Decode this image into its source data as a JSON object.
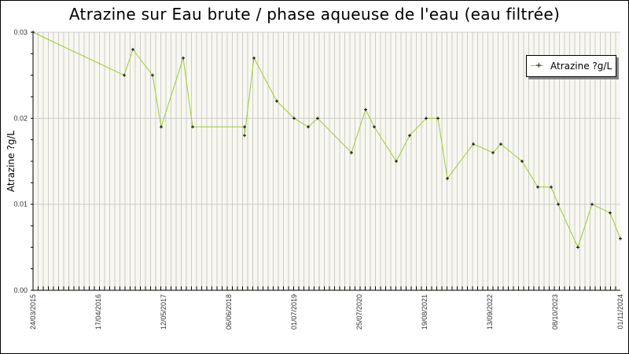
{
  "chart": {
    "title": "Atrazine sur Eau brute / phase aqueuse de l'eau (eau filtrée)",
    "ylabel": "Atrazine ?g/L",
    "legend_label": "Atrazine ?g/L",
    "line_color": "#9ACD32",
    "marker_color": "#000000",
    "plot_bg": "#F8F8F0",
    "grid_color": "#CCCCCC"
  },
  "chart_data": {
    "type": "line",
    "title": "Atrazine sur Eau brute / phase aqueuse de l'eau (eau filtrée)",
    "xlabel": "",
    "ylabel": "Atrazine ?g/L",
    "ylim": [
      0,
      0.03
    ],
    "yticks": [
      "0.00",
      "0.01",
      "0.02",
      "0.03"
    ],
    "xtick_labels": [
      "24/03/2015",
      "17/04/2016",
      "12/05/2017",
      "06/06/2018",
      "01/07/2019",
      "25/07/2020",
      "19/08/2021",
      "13/09/2022",
      "08/10/2023",
      "01/11/2024"
    ],
    "grid": {
      "vertical": true,
      "horizontal": true
    },
    "legend_position": "upper right",
    "series": [
      {
        "name": "Atrazine ?g/L",
        "points": [
          {
            "x": "24/03/2015",
            "y": 0.03
          },
          {
            "x": "2016-11",
            "y": 0.025
          },
          {
            "x": "2017-01",
            "y": 0.028
          },
          {
            "x": "2017-04",
            "y": 0.025
          },
          {
            "x": "2017-06",
            "y": 0.019
          },
          {
            "x": "2017-10",
            "y": 0.027
          },
          {
            "x": "2017-12",
            "y": 0.019
          },
          {
            "x": "2018-09",
            "y": 0.019
          },
          {
            "x": "2018-09b",
            "y": 0.018
          },
          {
            "x": "2018-11",
            "y": 0.027
          },
          {
            "x": "2019-03",
            "y": 0.022
          },
          {
            "x": "2019-06",
            "y": 0.02
          },
          {
            "x": "2019-09",
            "y": 0.019
          },
          {
            "x": "2019-10",
            "y": 0.02
          },
          {
            "x": "2020-05",
            "y": 0.016
          },
          {
            "x": "2020-07",
            "y": 0.021
          },
          {
            "x": "2020-09",
            "y": 0.019
          },
          {
            "x": "2021-01",
            "y": 0.015
          },
          {
            "x": "2021-04",
            "y": 0.018
          },
          {
            "x": "2021-07",
            "y": 0.02
          },
          {
            "x": "2021-10",
            "y": 0.02
          },
          {
            "x": "2021-12",
            "y": 0.013
          },
          {
            "x": "2022-06",
            "y": 0.017
          },
          {
            "x": "2022-09",
            "y": 0.016
          },
          {
            "x": "2022-11",
            "y": 0.017
          },
          {
            "x": "2023-03",
            "y": 0.015
          },
          {
            "x": "2023-06",
            "y": 0.012
          },
          {
            "x": "2023-09",
            "y": 0.012
          },
          {
            "x": "2023-10",
            "y": 0.01
          },
          {
            "x": "2024-03",
            "y": 0.005
          },
          {
            "x": "2024-06",
            "y": 0.01
          },
          {
            "x": "2024-09",
            "y": 0.009
          },
          {
            "x": "01/11/2024",
            "y": 0.006
          }
        ],
        "px": [
          42,
          158,
          169,
          194,
          205,
          233,
          245,
          311,
          311,
          323,
          352,
          374,
          392,
          404,
          447,
          465,
          476,
          504,
          521,
          542,
          557,
          569,
          602,
          627,
          637,
          664,
          684,
          701,
          710,
          735,
          753,
          776,
          789
        ]
      }
    ]
  }
}
